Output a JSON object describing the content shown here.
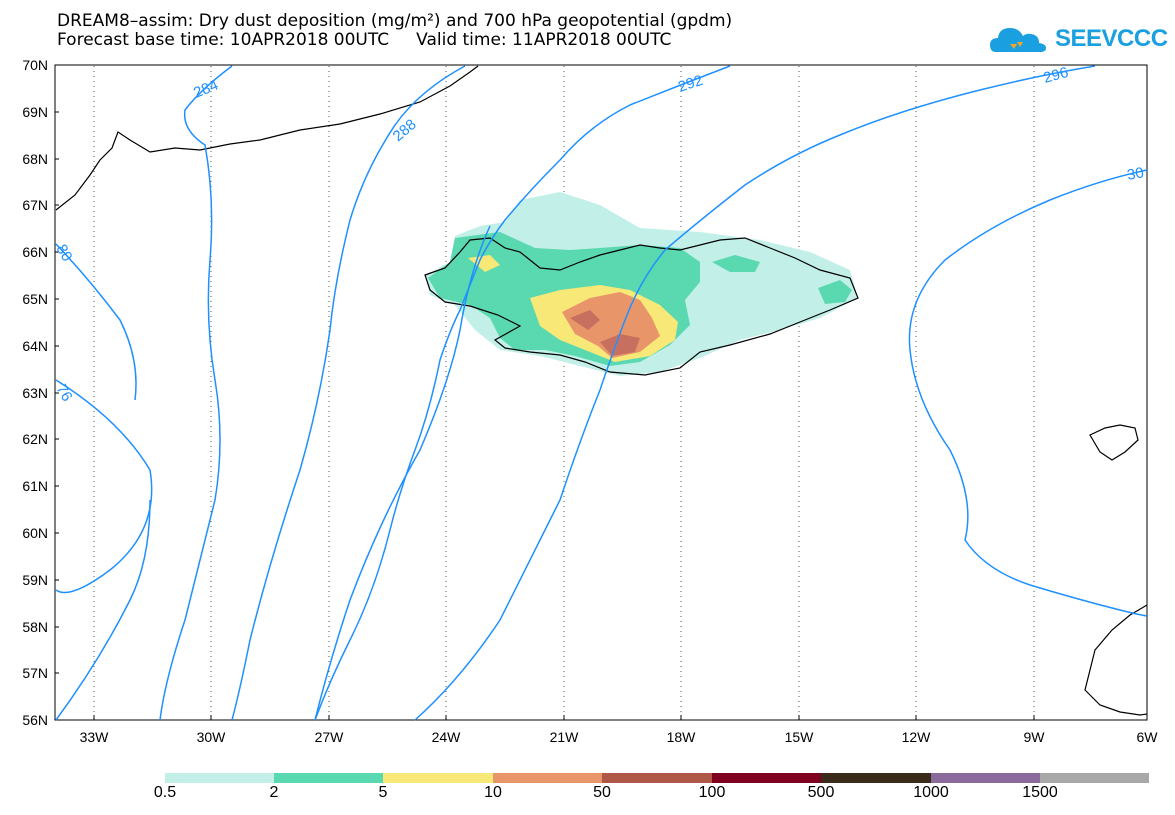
{
  "title": {
    "line1": "DREAM8–assim: Dry dust deposition (mg/m²) and 700 hPa geopotential (gpdm)",
    "line2": "Forecast base time: 10APR2018 00UTC     Valid time: 11APR2018 00UTC"
  },
  "logo": {
    "text": "SEEVCCC",
    "icon": "cloud-icon",
    "color": "#1aa0e0"
  },
  "map": {
    "lat_labels": [
      "70N",
      "69N",
      "68N",
      "67N",
      "66N",
      "65N",
      "64N",
      "63N",
      "62N",
      "61N",
      "60N",
      "59N",
      "58N",
      "57N",
      "56N"
    ],
    "lon_labels": [
      "33W",
      "30W",
      "27W",
      "24W",
      "21W",
      "18W",
      "15W",
      "12W",
      "9W",
      "6W"
    ],
    "contour_labels": [
      "284",
      "288",
      "292",
      "296",
      "30",
      "80",
      "76"
    ],
    "contour_color": "#1e90ff"
  },
  "colorbar": {
    "labels": [
      "0.5",
      "2",
      "5",
      "10",
      "50",
      "100",
      "500",
      "1000",
      "1500"
    ],
    "colors": [
      "#c2f0e8",
      "#5ad8b0",
      "#f8e878",
      "#e8956a",
      "#b05848",
      "#800020",
      "#3a2a1a",
      "#8a6a9a",
      "#a8a8a8"
    ]
  }
}
